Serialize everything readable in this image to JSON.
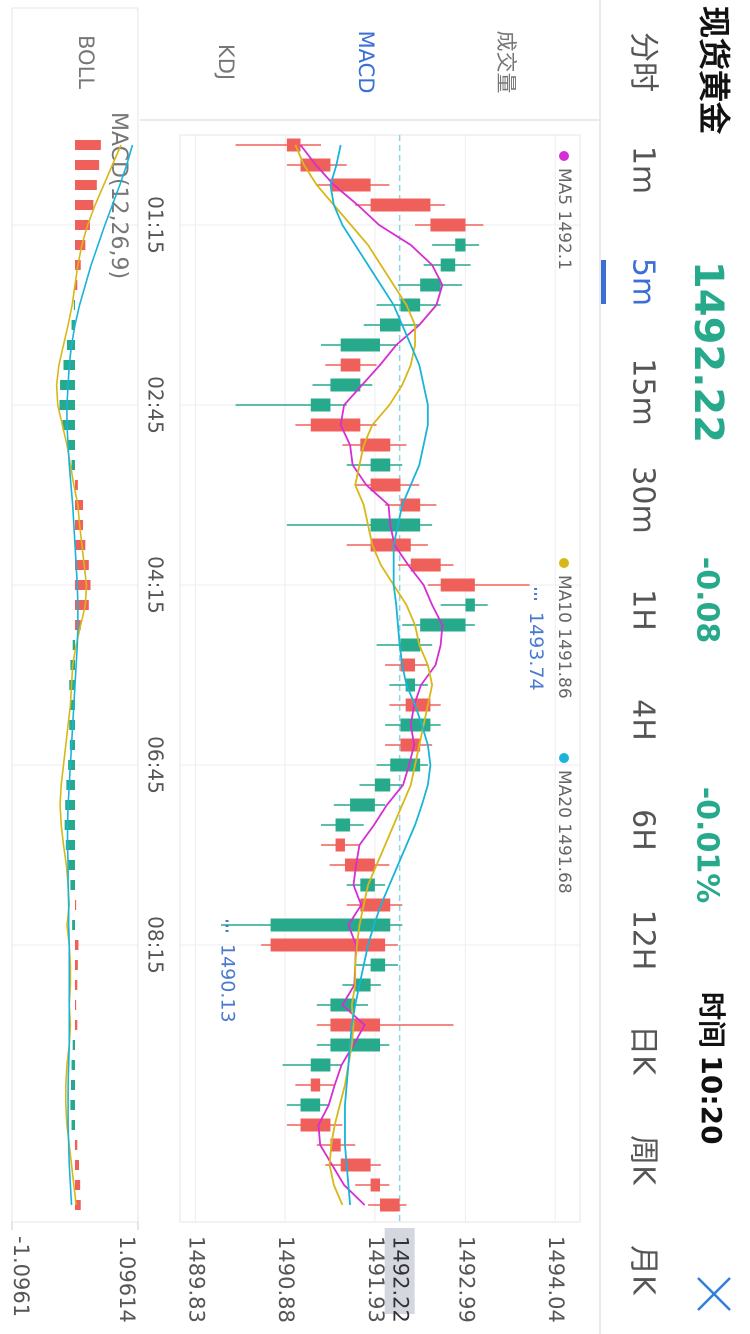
{
  "header": {
    "title": "现货黄金",
    "price": "1492.22",
    "change": "-0.08",
    "change_pct": "-0.01%",
    "time_label": "时间",
    "time": "10:20"
  },
  "tabs": [
    "分时",
    "1m",
    "5m",
    "15m",
    "30m",
    "1H",
    "4H",
    "6H",
    "12H",
    "日K",
    "周K",
    "月K"
  ],
  "active_tab": 2,
  "indicators": [
    "成交量",
    "MACD",
    "KDJ",
    "BOLL"
  ],
  "active_indicator": 1,
  "chart_data": [
    {
      "type": "candlestick",
      "categories": [
        null,
        null,
        null,
        null,
        "01:15",
        null,
        null,
        null,
        null,
        null,
        null,
        null,
        null,
        "02:45",
        null,
        null,
        null,
        null,
        null,
        null,
        null,
        null,
        "04:15",
        null,
        null,
        null,
        null,
        null,
        null,
        null,
        null,
        "06:45",
        null,
        null,
        null,
        null,
        null,
        null,
        null,
        null,
        "08:15",
        null,
        null,
        null,
        null,
        null,
        null,
        null,
        null,
        null,
        null,
        null,
        null,
        null
      ],
      "open": [
        1490.9,
        1491.06,
        1491.41,
        1491.88,
        1492.58,
        1492.99,
        1492.87,
        1492.7,
        1492.46,
        1492.23,
        1491.99,
        1491.53,
        1491.76,
        1491.41,
        1491.18,
        1491.76,
        1492.11,
        1491.88,
        1492.23,
        1492.46,
        1491.88,
        1492.35,
        1492.7,
        1493.1,
        1492.99,
        1492.46,
        1492.23,
        1492.4,
        1492.29,
        1492.58,
        1492.23,
        1492.46,
        1492.11,
        1491.93,
        1491.64,
        1491.47,
        1491.58,
        1491.93,
        1491.76,
        1492.11,
        1490.71,
        1492.05,
        1491.88,
        1491.7,
        1491.41,
        1491.99,
        1491.41,
        1491.18,
        1491.29,
        1491.06,
        1491.41,
        1491.53,
        1491.88,
        1491.99
      ],
      "high": [
        1491.3,
        1491.6,
        1492.1,
        1492.75,
        1493.2,
        1493.15,
        1493.05,
        1492.95,
        1492.7,
        1492.45,
        1492.2,
        1491.95,
        1491.9,
        1491.6,
        1491.95,
        1492.3,
        1492.25,
        1492.45,
        1492.65,
        1492.6,
        1492.55,
        1492.85,
        1493.74,
        1493.25,
        1493.1,
        1492.6,
        1492.55,
        1492.55,
        1492.7,
        1492.7,
        1492.6,
        1492.55,
        1492.25,
        1492.05,
        1491.8,
        1491.75,
        1492.1,
        1492.05,
        1492.25,
        1492.25,
        1492.2,
        1492.2,
        1492.0,
        1491.85,
        1492.85,
        1492.1,
        1491.55,
        1491.45,
        1491.4,
        1491.55,
        1491.7,
        1492.0,
        1492.1,
        1492.3
      ],
      "low": [
        1490.3,
        1490.9,
        1491.25,
        1491.7,
        1492.4,
        1492.6,
        1492.5,
        1492.2,
        1491.95,
        1491.8,
        1491.3,
        1491.35,
        1491.2,
        1490.3,
        1491.0,
        1491.55,
        1491.6,
        1491.7,
        1492.05,
        1490.9,
        1491.6,
        1492.2,
        1492.55,
        1492.7,
        1492.25,
        1491.95,
        1492.05,
        1492.1,
        1492.1,
        1492.05,
        1492.05,
        1491.95,
        1491.75,
        1491.45,
        1491.3,
        1491.3,
        1491.4,
        1491.6,
        1491.6,
        1490.13,
        1490.6,
        1491.7,
        1491.55,
        1491.25,
        1491.25,
        1491.25,
        1490.85,
        1491.0,
        1490.9,
        1490.9,
        1491.25,
        1491.35,
        1491.7,
        1491.85
      ],
      "close": [
        1491.06,
        1491.41,
        1491.88,
        1492.58,
        1492.99,
        1492.87,
        1492.7,
        1492.46,
        1492.23,
        1491.99,
        1491.53,
        1491.76,
        1491.41,
        1491.18,
        1491.76,
        1492.11,
        1491.88,
        1492.23,
        1492.46,
        1491.88,
        1492.35,
        1492.7,
        1493.1,
        1492.99,
        1492.46,
        1492.23,
        1492.4,
        1492.29,
        1492.58,
        1492.23,
        1492.46,
        1492.11,
        1491.93,
        1491.64,
        1491.47,
        1491.58,
        1491.93,
        1491.76,
        1492.11,
        1490.71,
        1492.05,
        1491.88,
        1491.7,
        1491.41,
        1491.99,
        1491.41,
        1491.18,
        1491.29,
        1491.06,
        1491.41,
        1491.53,
        1491.88,
        1491.99,
        1492.22
      ],
      "up_color": "#f0605a",
      "down_color": "#27a98b",
      "series": [
        {
          "name": "MA5 1492.1",
          "color": "#d42ed4",
          "values": [
            1491.06,
            1491.24,
            1491.45,
            1491.73,
            1491.98,
            1492.35,
            1492.6,
            1492.72,
            1492.65,
            1492.45,
            1492.18,
            1491.99,
            1491.78,
            1491.57,
            1491.53,
            1491.64,
            1491.67,
            1491.83,
            1492.09,
            1492.11,
            1492.16,
            1492.32,
            1492.5,
            1492.6,
            1492.72,
            1492.7,
            1492.64,
            1492.47,
            1492.39,
            1492.35,
            1492.39,
            1492.33,
            1492.26,
            1492.07,
            1491.92,
            1491.75,
            1491.71,
            1491.68,
            1491.77,
            1491.62,
            1491.71,
            1491.7,
            1491.69,
            1491.55,
            1491.81,
            1491.68,
            1491.54,
            1491.46,
            1491.39,
            1491.27,
            1491.29,
            1491.43,
            1491.57,
            1491.81
          ]
        },
        {
          "name": "MA10 1491.86",
          "color": "#d8b818",
          "values": [
            1491.0,
            1491.1,
            1491.25,
            1491.45,
            1491.65,
            1491.85,
            1492.0,
            1492.15,
            1492.3,
            1492.4,
            1492.4,
            1492.35,
            1492.25,
            1492.1,
            1491.9,
            1491.8,
            1491.75,
            1491.7,
            1491.8,
            1491.85,
            1491.9,
            1492.0,
            1492.15,
            1492.3,
            1492.4,
            1492.45,
            1492.55,
            1492.6,
            1492.55,
            1492.5,
            1492.45,
            1492.4,
            1492.35,
            1492.25,
            1492.15,
            1492.05,
            1491.95,
            1491.85,
            1491.8,
            1491.75,
            1491.72,
            1491.7,
            1491.7,
            1491.66,
            1491.68,
            1491.66,
            1491.62,
            1491.58,
            1491.52,
            1491.46,
            1491.42,
            1491.4,
            1491.45,
            1491.55
          ]
        },
        {
          "name": "MA20 1491.68",
          "color": "#1ab4d9",
          "values": [
            1491.53,
            1491.48,
            1491.41,
            1491.45,
            1491.55,
            1491.7,
            1491.85,
            1492.0,
            1492.15,
            1492.25,
            1492.35,
            1492.45,
            1492.5,
            1492.55,
            1492.55,
            1492.5,
            1492.45,
            1492.35,
            1492.25,
            1492.2,
            1492.15,
            1492.15,
            1492.15,
            1492.18,
            1492.2,
            1492.22,
            1492.25,
            1492.3,
            1492.4,
            1492.48,
            1492.55,
            1492.58,
            1492.55,
            1492.48,
            1492.4,
            1492.3,
            1492.2,
            1492.1,
            1492.0,
            1491.92,
            1491.85,
            1491.8,
            1491.75,
            1491.7,
            1491.66,
            1491.64,
            1491.62,
            1491.6,
            1491.58,
            1491.58,
            1491.58,
            1491.6,
            1491.62,
            1491.64
          ]
        }
      ],
      "ylim": [
        1489.65,
        1494.33
      ],
      "yticks": [
        1494.04,
        1492.99,
        1491.93,
        1490.88,
        1489.83
      ],
      "current": 1492.22,
      "max_label": 1493.74,
      "min_label": 1490.13,
      "grid": true
    },
    {
      "type": "macd",
      "title": "MACD(12,26,9)",
      "values": [
        0.45,
        0.42,
        0.38,
        0.32,
        0.26,
        0.18,
        0.1,
        0.04,
        -0.02,
        -0.06,
        -0.14,
        -0.2,
        -0.26,
        -0.27,
        -0.22,
        -0.12,
        -0.06,
        0.05,
        0.14,
        0.14,
        0.18,
        0.24,
        0.27,
        0.24,
        0.1,
        -0.04,
        -0.08,
        -0.1,
        -0.08,
        -0.1,
        -0.09,
        -0.12,
        -0.15,
        -0.17,
        -0.18,
        -0.16,
        -0.12,
        -0.08,
        0.02,
        -0.05,
        0.06,
        0.05,
        0.04,
        0.02,
        0.04,
        -0.04,
        -0.06,
        -0.07,
        -0.08,
        -0.06,
        0.04,
        0.07,
        0.09,
        0.1
      ],
      "up_color": "#f0605a",
      "down_color": "#27a98b",
      "series": [
        {
          "color": "#d8b818",
          "values": [
            0.8,
            0.65,
            0.5,
            0.35,
            0.22,
            0.12,
            0.05,
            0.0,
            -0.05,
            -0.12,
            -0.2,
            -0.28,
            -0.32,
            -0.3,
            -0.22,
            -0.14,
            -0.08,
            -0.02,
            0.05,
            0.08,
            0.12,
            0.16,
            0.2,
            0.18,
            0.1,
            0.02,
            -0.04,
            -0.06,
            -0.08,
            -0.12,
            -0.16,
            -0.2,
            -0.24,
            -0.26,
            -0.24,
            -0.2,
            -0.15,
            -0.12,
            -0.1,
            -0.14,
            -0.1,
            -0.08,
            -0.08,
            -0.1,
            -0.08,
            -0.1,
            -0.14,
            -0.16,
            -0.16,
            -0.14,
            -0.1,
            -0.06,
            -0.02,
            0.02
          ]
        },
        {
          "color": "#1ab4d9",
          "values": [
            1.0,
            0.9,
            0.78,
            0.65,
            0.52,
            0.4,
            0.28,
            0.18,
            0.08,
            0.0,
            -0.06,
            -0.1,
            -0.12,
            -0.14,
            -0.14,
            -0.12,
            -0.1,
            -0.07,
            -0.04,
            -0.02,
            0.0,
            0.02,
            0.04,
            0.05,
            0.05,
            0.04,
            0.02,
            0.0,
            -0.02,
            -0.04,
            -0.06,
            -0.08,
            -0.1,
            -0.12,
            -0.13,
            -0.13,
            -0.12,
            -0.12,
            -0.11,
            -0.11,
            -0.1,
            -0.1,
            -0.1,
            -0.1,
            -0.1,
            -0.1,
            -0.11,
            -0.12,
            -0.12,
            -0.12,
            -0.11,
            -0.1,
            -0.08,
            -0.06
          ]
        }
      ],
      "ylim": [
        -1.0961,
        1.09614
      ],
      "yticks": [
        1.09614,
        -1.0961
      ]
    }
  ]
}
